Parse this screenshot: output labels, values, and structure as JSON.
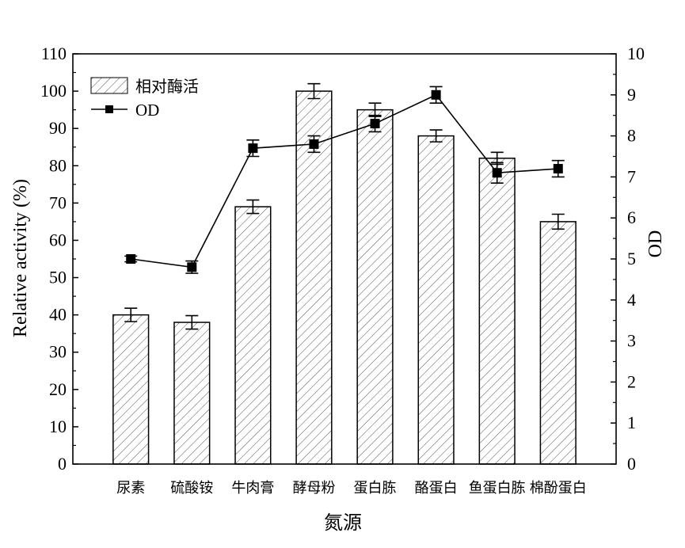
{
  "chart_data": {
    "type": "bar+line",
    "categories": [
      "尿素",
      "硫酸铵",
      "牛肉膏",
      "酵母粉",
      "蛋白胨",
      "酪蛋白",
      "鱼蛋白胨",
      "棉酚蛋白"
    ],
    "xlabel": "氮源",
    "ylabel": "Relative activity (%)",
    "y2label": "OD",
    "ylim": [
      0,
      110
    ],
    "y2lim": [
      0,
      10
    ],
    "yticks": [
      "0",
      "10",
      "20",
      "30",
      "40",
      "50",
      "60",
      "70",
      "80",
      "90",
      "100",
      "110"
    ],
    "y2ticks": [
      "0",
      "1",
      "2",
      "3",
      "4",
      "5",
      "6",
      "7",
      "8",
      "9",
      "10"
    ],
    "legend_position": "top-left",
    "series": [
      {
        "name": "相对酶活",
        "type": "bar",
        "axis": "left",
        "pattern": "diagonal-hatch",
        "values": [
          40,
          38,
          69,
          100,
          95,
          88,
          82,
          65
        ],
        "errors": [
          1.8,
          1.8,
          1.8,
          2.0,
          1.8,
          1.6,
          1.6,
          2.0
        ]
      },
      {
        "name": "OD",
        "type": "line",
        "axis": "right",
        "marker": "square",
        "values": [
          5.0,
          4.8,
          7.7,
          7.8,
          8.3,
          9.0,
          7.1,
          7.2
        ],
        "errors": [
          0.07,
          0.15,
          0.2,
          0.2,
          0.2,
          0.2,
          0.25,
          0.2
        ]
      }
    ]
  }
}
